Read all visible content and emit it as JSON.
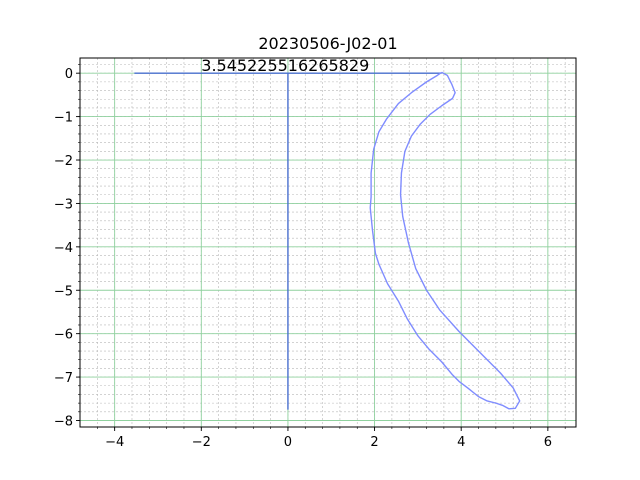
{
  "chart_data": {
    "type": "line",
    "title": "20230506-J02-01",
    "xlabel": "",
    "ylabel": "",
    "xlim": [
      -4.8,
      6.65
    ],
    "ylim": [
      -8.15,
      0.35
    ],
    "x_ticks": [
      -4,
      -2,
      0,
      2,
      4,
      6
    ],
    "x_tick_labels": [
      "−4",
      "−2",
      "0",
      "2",
      "4",
      "6"
    ],
    "y_ticks": [
      0,
      -1,
      -2,
      -3,
      -4,
      -5,
      -6,
      -7,
      -8
    ],
    "y_tick_labels": [
      "0",
      "−1",
      "−2",
      "−3",
      "−4",
      "−5",
      "−6",
      "−7",
      "−8"
    ],
    "grid": true,
    "minor_grid": true,
    "colors": {
      "major_grid": "#8fd19e",
      "minor_grid": "#b8b8b8",
      "reference_lines": "#4a6fcf",
      "outline": "#7f8cff"
    },
    "annotation": {
      "text": "3.545225516265829",
      "x": -2.0,
      "y": 0.05
    },
    "series": [
      {
        "points": [
          [
            -3.545,
            0.0
          ],
          [
            3.545,
            0.0
          ]
        ]
      },
      {
        "points": [
          [
            0.0,
            0.0
          ],
          [
            0.0,
            -7.75
          ]
        ]
      },
      {
        "points": [
          [
            3.55,
            0.02
          ],
          [
            3.68,
            -0.05
          ],
          [
            3.78,
            -0.25
          ],
          [
            3.86,
            -0.45
          ],
          [
            3.8,
            -0.58
          ],
          [
            3.55,
            -0.75
          ],
          [
            3.28,
            -0.95
          ],
          [
            3.05,
            -1.18
          ],
          [
            2.85,
            -1.45
          ],
          [
            2.7,
            -1.8
          ],
          [
            2.62,
            -2.3
          ],
          [
            2.6,
            -2.8
          ],
          [
            2.65,
            -3.3
          ],
          [
            2.78,
            -3.9
          ],
          [
            2.95,
            -4.5
          ],
          [
            3.2,
            -5.0
          ],
          [
            3.5,
            -5.45
          ],
          [
            3.95,
            -5.95
          ],
          [
            4.45,
            -6.45
          ],
          [
            4.9,
            -6.9
          ],
          [
            5.2,
            -7.25
          ],
          [
            5.35,
            -7.55
          ],
          [
            5.25,
            -7.72
          ],
          [
            5.1,
            -7.73
          ],
          [
            4.95,
            -7.65
          ],
          [
            4.8,
            -7.6
          ],
          [
            4.6,
            -7.55
          ],
          [
            4.4,
            -7.45
          ],
          [
            4.15,
            -7.25
          ],
          [
            3.95,
            -7.1
          ],
          [
            3.8,
            -6.95
          ],
          [
            3.55,
            -6.65
          ],
          [
            3.25,
            -6.35
          ],
          [
            3.0,
            -6.05
          ],
          [
            2.75,
            -5.65
          ],
          [
            2.55,
            -5.25
          ],
          [
            2.3,
            -4.85
          ],
          [
            2.1,
            -4.4
          ],
          [
            2.02,
            -4.15
          ],
          [
            1.95,
            -3.6
          ],
          [
            1.9,
            -3.1
          ],
          [
            1.92,
            -2.85
          ],
          [
            1.92,
            -2.3
          ],
          [
            1.98,
            -1.75
          ],
          [
            2.1,
            -1.35
          ],
          [
            2.28,
            -1.05
          ],
          [
            2.55,
            -0.7
          ],
          [
            2.85,
            -0.45
          ],
          [
            3.2,
            -0.2
          ],
          [
            3.45,
            -0.05
          ],
          [
            3.55,
            0.02
          ]
        ]
      }
    ]
  }
}
